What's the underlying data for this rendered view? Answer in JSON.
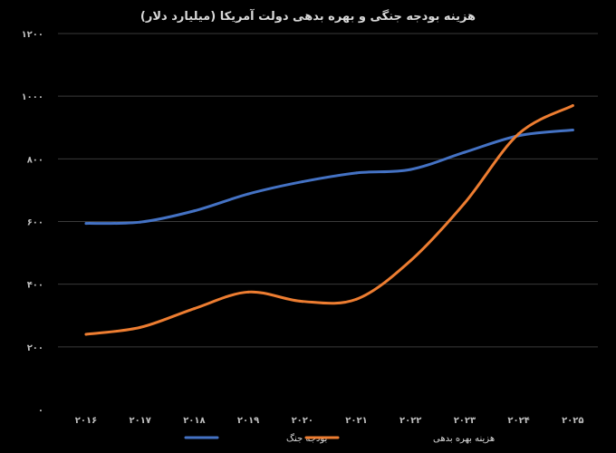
{
  "chart_data": {
    "type": "line",
    "title": "هزینه بودجه جنگی و بهره بدهی دولت آمریکا (میلیارد دلار)",
    "xlabel": "",
    "ylabel": "",
    "categories": [
      "۲۰۱۶",
      "۲۰۱۷",
      "۲۰۱۸",
      "۲۰۱۹",
      "۲۰۲۰",
      "۲۰۲۱",
      "۲۰۲۲",
      "۲۰۲۳",
      "۲۰۲۴",
      "۲۰۲۵"
    ],
    "ylim": [
      0,
      1200
    ],
    "yticks": [
      0,
      200,
      400,
      600,
      800,
      1000,
      1200
    ],
    "ytick_labels": [
      "۰",
      "۲۰۰",
      "۴۰۰",
      "۶۰۰",
      "۸۰۰",
      "۱۰۰۰",
      "۱۲۰۰"
    ],
    "grid": true,
    "legend_position": "bottom",
    "series": [
      {
        "name": "بودجه جنگ",
        "color": "#4472c4",
        "values": [
          594,
          598,
          634,
          688,
          727,
          755,
          766,
          821,
          874,
          892
        ]
      },
      {
        "name": "هزینه بهره بدهی",
        "color": "#ed7d31",
        "values": [
          240,
          262,
          322,
          375,
          345,
          352,
          475,
          659,
          880,
          970
        ]
      }
    ]
  }
}
